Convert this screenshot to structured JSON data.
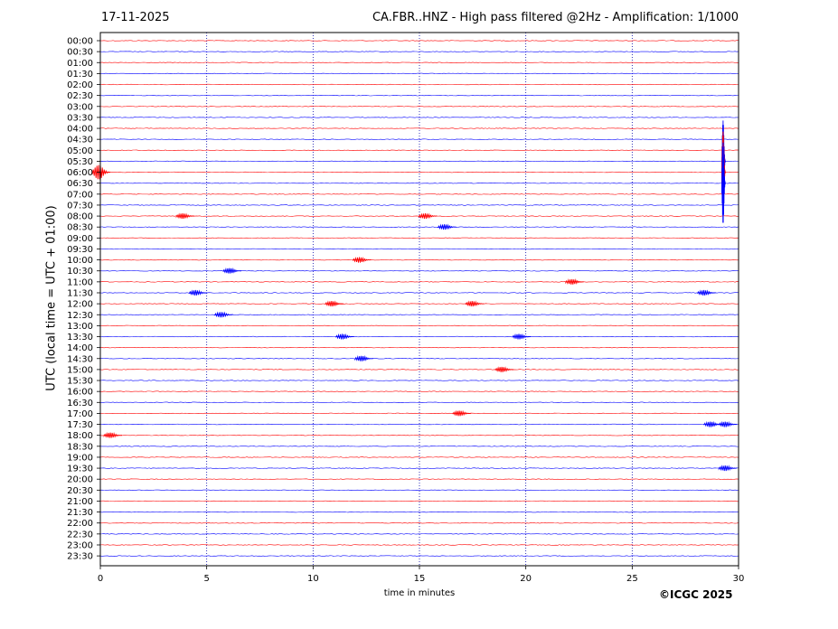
{
  "header": {
    "date": "17-11-2025",
    "title": "CA.FBR..HNZ - High pass filtered @2Hz - Amplification: 1/1000"
  },
  "footer": {
    "copyright": "©ICGC 2025"
  },
  "chart_data": {
    "type": "line",
    "title": "CA.FBR..HNZ - High pass filtered @2Hz - Amplification: 1/1000",
    "xlabel": "time in minutes",
    "ylabel": "UTC (local time = UTC + 01:00)",
    "xlim": [
      0,
      30
    ],
    "x_ticks": [
      0,
      5,
      10,
      15,
      20,
      25,
      30
    ],
    "y_ticks": [
      "00:00",
      "00:30",
      "01:00",
      "01:30",
      "02:00",
      "02:30",
      "03:00",
      "03:30",
      "04:00",
      "04:30",
      "05:00",
      "05:30",
      "06:00",
      "06:30",
      "07:00",
      "07:30",
      "08:00",
      "08:30",
      "09:00",
      "09:30",
      "10:00",
      "10:30",
      "11:00",
      "11:30",
      "12:00",
      "12:30",
      "13:00",
      "13:30",
      "14:00",
      "14:30",
      "15:00",
      "15:30",
      "16:00",
      "16:30",
      "17:00",
      "17:30",
      "18:00",
      "18:30",
      "19:00",
      "19:30",
      "20:00",
      "20:30",
      "21:00",
      "21:30",
      "22:00",
      "22:30",
      "23:00",
      "23:30"
    ],
    "trace_colors": [
      "#ff0000",
      "#0000ff"
    ],
    "grid": "vertical dotted lines every 5 minutes",
    "events": [
      {
        "row": "05:30",
        "minute": 29.3,
        "amplitude": "large"
      },
      {
        "row": "06:00",
        "minute": 29.3,
        "amplitude": "large"
      },
      {
        "row": "06:30",
        "minute": 29.3,
        "amplitude": "large"
      },
      {
        "row": "06:00",
        "minute": 0.05,
        "amplitude": "medium"
      },
      {
        "row": "08:00",
        "minute": 4.0,
        "amplitude": "small"
      },
      {
        "row": "08:00",
        "minute": 15.4,
        "amplitude": "small"
      },
      {
        "row": "08:30",
        "minute": 16.3,
        "amplitude": "small"
      },
      {
        "row": "10:00",
        "minute": 12.3,
        "amplitude": "small"
      },
      {
        "row": "10:30",
        "minute": 6.2,
        "amplitude": "small"
      },
      {
        "row": "11:00",
        "minute": 22.3,
        "amplitude": "small"
      },
      {
        "row": "11:30",
        "minute": 4.6,
        "amplitude": "small"
      },
      {
        "row": "11:30",
        "minute": 28.5,
        "amplitude": "small"
      },
      {
        "row": "12:00",
        "minute": 11.0,
        "amplitude": "small"
      },
      {
        "row": "12:00",
        "minute": 17.6,
        "amplitude": "small"
      },
      {
        "row": "12:30",
        "minute": 5.8,
        "amplitude": "small"
      },
      {
        "row": "13:30",
        "minute": 11.5,
        "amplitude": "small"
      },
      {
        "row": "13:30",
        "minute": 19.8,
        "amplitude": "small"
      },
      {
        "row": "14:30",
        "minute": 12.4,
        "amplitude": "small"
      },
      {
        "row": "15:00",
        "minute": 19.0,
        "amplitude": "small"
      },
      {
        "row": "17:00",
        "minute": 17.0,
        "amplitude": "small"
      },
      {
        "row": "17:30",
        "minute": 28.8,
        "amplitude": "small"
      },
      {
        "row": "17:30",
        "minute": 29.5,
        "amplitude": "small"
      },
      {
        "row": "18:00",
        "minute": 0.6,
        "amplitude": "small"
      },
      {
        "row": "19:30",
        "minute": 29.5,
        "amplitude": "small"
      }
    ]
  }
}
